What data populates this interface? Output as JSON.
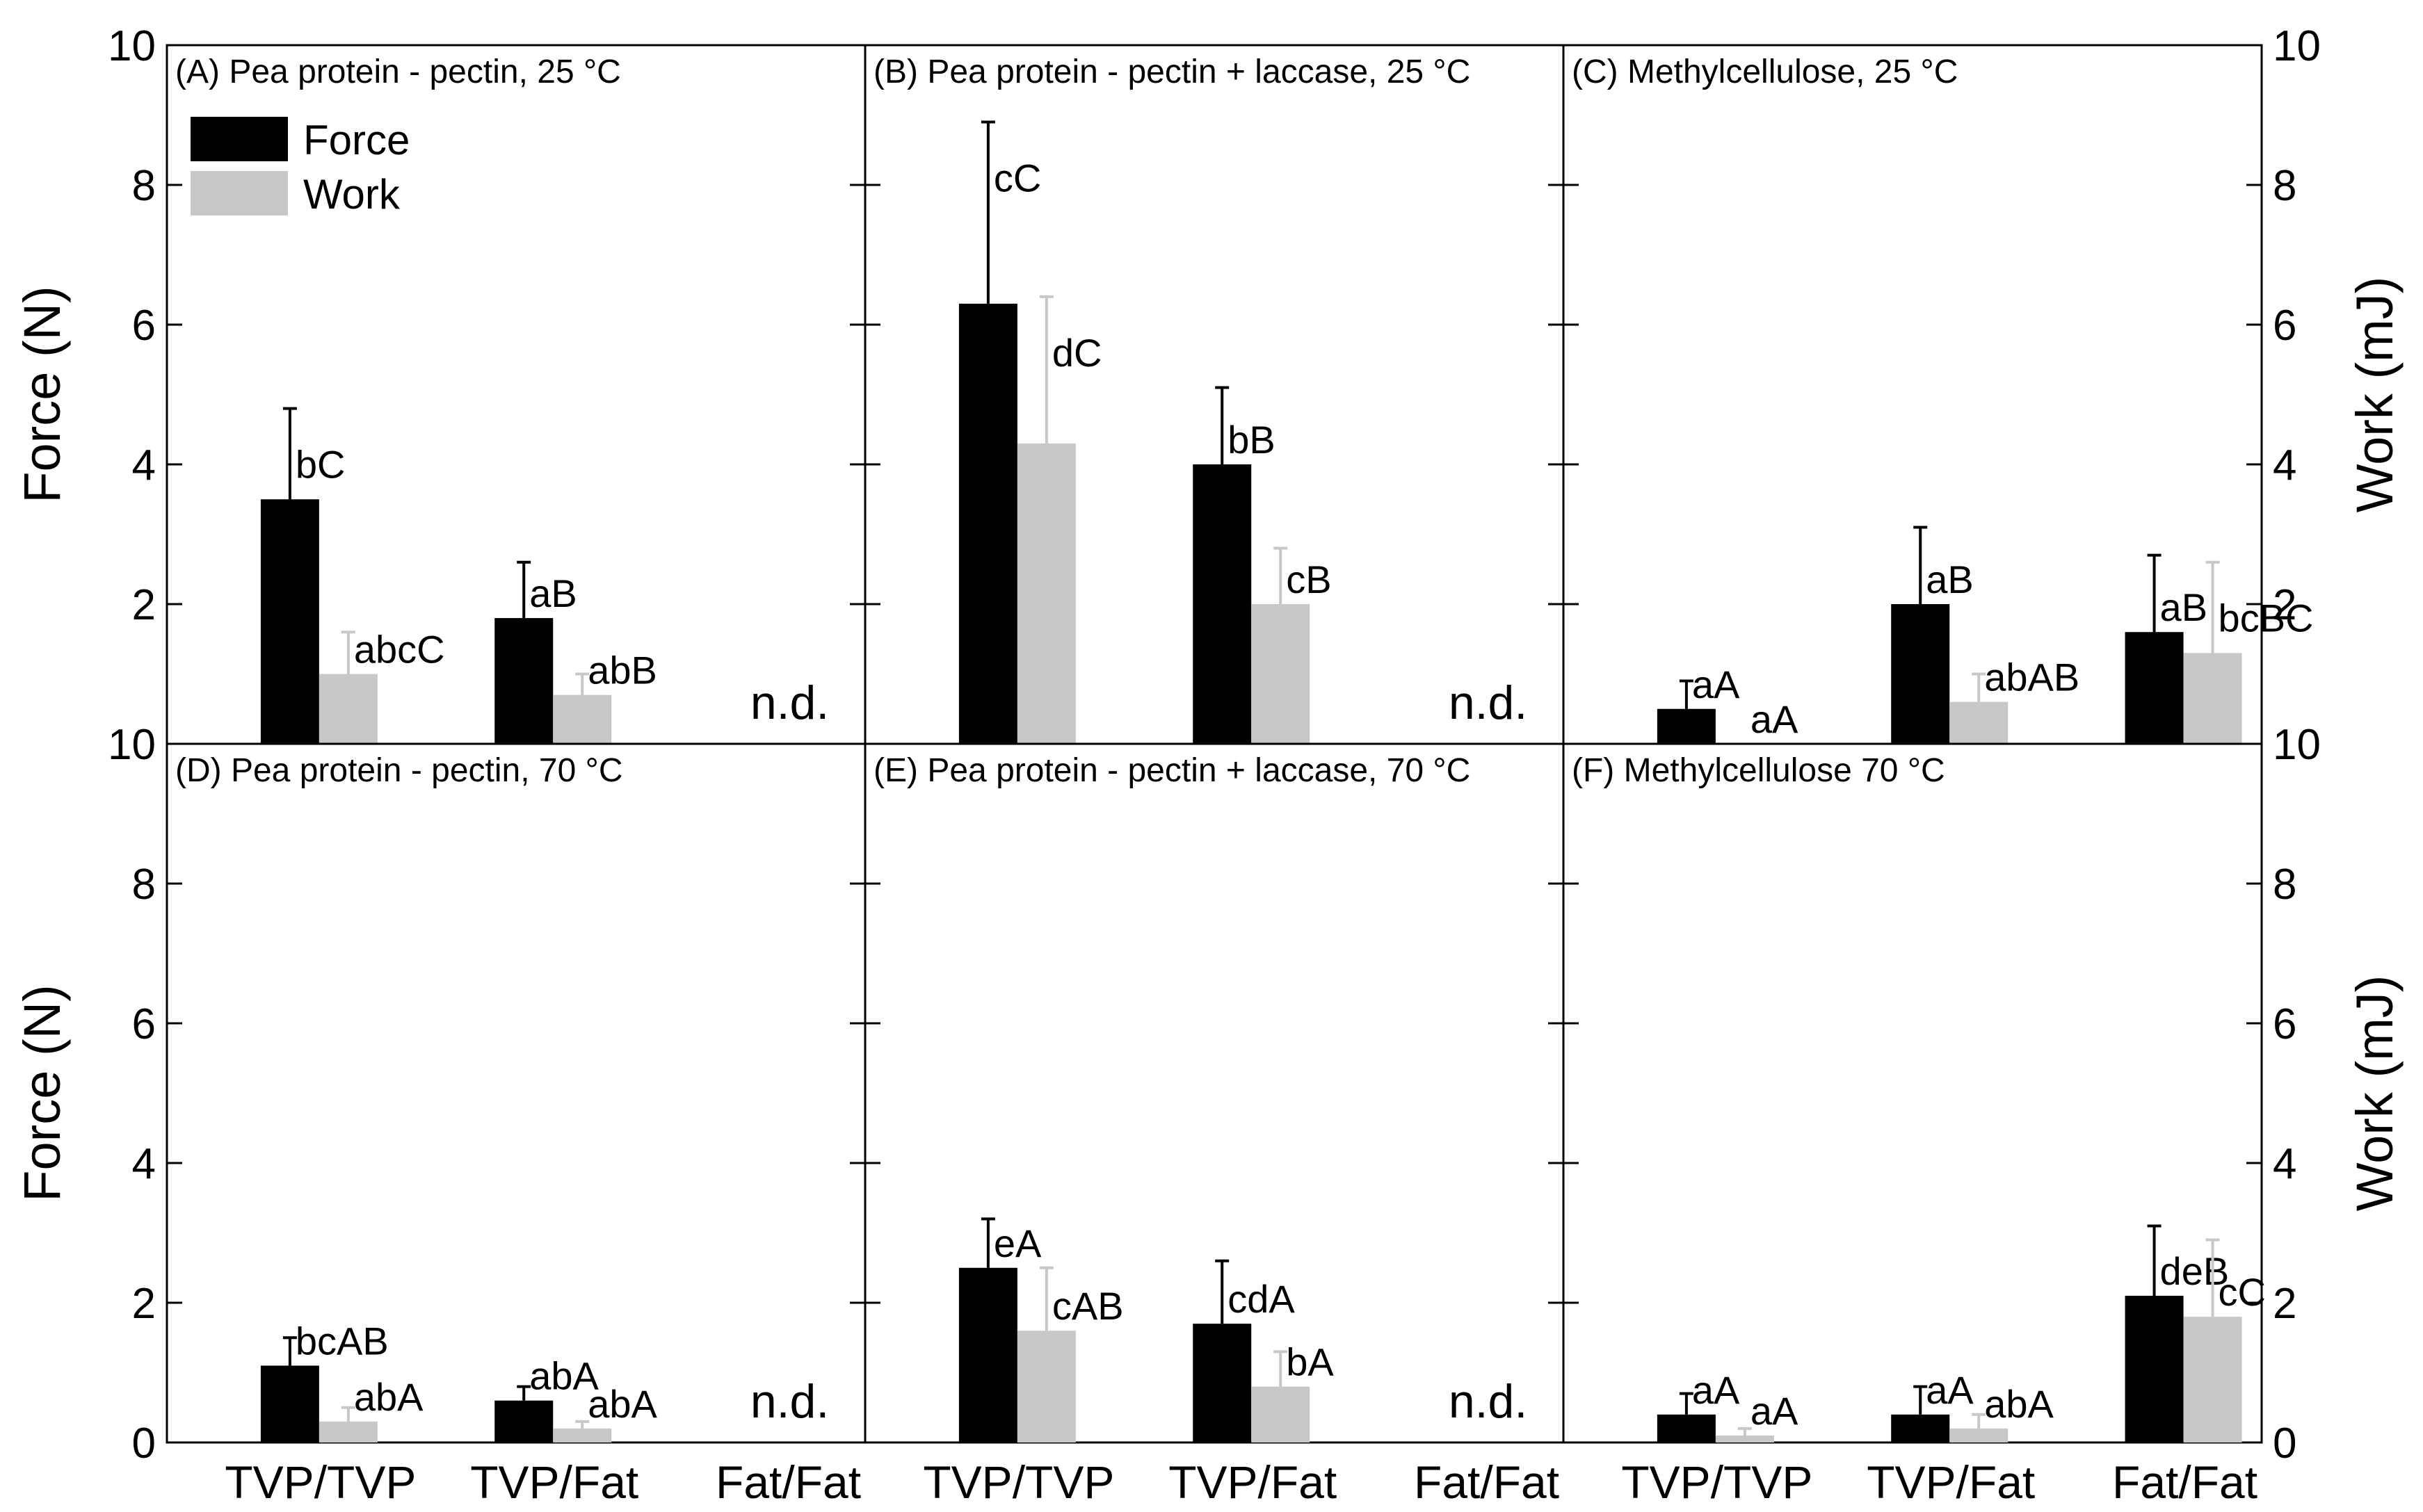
{
  "chart_data": {
    "type": "bar",
    "layout": "2x3 grid of panels sharing axes",
    "categories": [
      "TVP/TVP",
      "TVP/Fat",
      "Fat/Fat"
    ],
    "y_left": {
      "label": "Force (N)",
      "range": [
        0,
        10
      ],
      "ticks": [
        0,
        2,
        4,
        6,
        8,
        10
      ]
    },
    "y_right": {
      "label": "Work (mJ)",
      "range": [
        0,
        10
      ],
      "ticks": [
        0,
        2,
        4,
        6,
        8,
        10
      ]
    },
    "tick_labels": {
      "left_top": [
        "10",
        "8",
        "6",
        "4",
        "2"
      ],
      "left_bottom": [
        "10",
        "8",
        "6",
        "4",
        "2",
        "0"
      ],
      "right_top": [
        "10",
        "8",
        "6",
        "4",
        "2"
      ],
      "right_bottom": [
        "10",
        "8",
        "6",
        "4",
        "2",
        "0"
      ]
    },
    "legend": {
      "position": "top-left of panel A",
      "entries": [
        "Force",
        "Work"
      ]
    },
    "colors": {
      "Force": "#000000",
      "Work": "#c8c8c8",
      "axes": "#000000"
    },
    "not_detected_label": "n.d.",
    "panels": [
      {
        "title": "(A) Pea protein - pectin, 25 °C",
        "force": [
          3.5,
          1.8,
          null
        ],
        "force_err": [
          1.3,
          0.8,
          null
        ],
        "force_labels": [
          "bC",
          "aB",
          null
        ],
        "work": [
          1.0,
          0.7,
          null
        ],
        "work_err": [
          0.6,
          0.3,
          null
        ],
        "work_labels": [
          "abcC",
          "abB",
          null
        ]
      },
      {
        "title": "(B) Pea protein - pectin + laccase, 25 °C",
        "force": [
          6.3,
          4.0,
          null
        ],
        "force_err": [
          2.6,
          1.1,
          null
        ],
        "force_labels": [
          "cC",
          "bB",
          null
        ],
        "work": [
          4.3,
          2.0,
          null
        ],
        "work_err": [
          2.1,
          0.8,
          null
        ],
        "work_labels": [
          "dC",
          "cB",
          null
        ]
      },
      {
        "title": "(C) Methylcellulose, 25 °C",
        "force": [
          0.5,
          2.0,
          1.6
        ],
        "force_err": [
          0.4,
          1.1,
          1.1
        ],
        "force_labels": [
          "aA",
          "aB",
          "aB"
        ],
        "work": [
          0.0,
          0.6,
          1.3
        ],
        "work_err": [
          0.0,
          0.4,
          1.3
        ],
        "work_labels": [
          "aA",
          "abAB",
          "bcBC"
        ]
      },
      {
        "title": "(D) Pea protein - pectin, 70 °C",
        "force": [
          1.1,
          0.6,
          null
        ],
        "force_err": [
          0.4,
          0.2,
          null
        ],
        "force_labels": [
          "bcAB",
          "abA",
          null
        ],
        "work": [
          0.3,
          0.2,
          null
        ],
        "work_err": [
          0.2,
          0.1,
          null
        ],
        "work_labels": [
          "abA",
          "abA",
          null
        ]
      },
      {
        "title": "(E) Pea protein - pectin + laccase, 70 °C",
        "force": [
          2.5,
          1.7,
          null
        ],
        "force_err": [
          0.7,
          0.9,
          null
        ],
        "force_labels": [
          "eA",
          "cdA",
          null
        ],
        "work": [
          1.6,
          0.8,
          null
        ],
        "work_err": [
          0.9,
          0.5,
          null
        ],
        "work_labels": [
          "cAB",
          "bA",
          null
        ]
      },
      {
        "title": "(F) Methylcellulose 70 °C",
        "force": [
          0.4,
          0.4,
          2.1
        ],
        "force_err": [
          0.3,
          0.4,
          1.0
        ],
        "force_labels": [
          "aA",
          "aA",
          "deB"
        ],
        "work": [
          0.1,
          0.2,
          1.8
        ],
        "work_err": [
          0.1,
          0.2,
          1.1
        ],
        "work_labels": [
          "aA",
          "abA",
          "cC"
        ]
      }
    ]
  }
}
